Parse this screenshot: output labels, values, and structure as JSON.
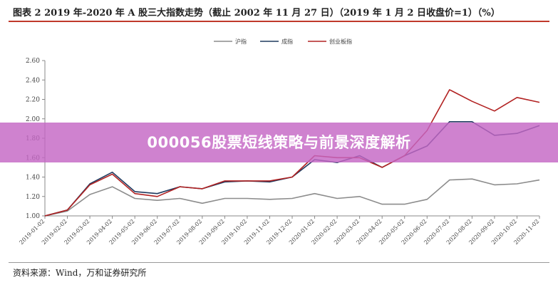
{
  "header": {
    "title": "图表 2   2019 年-2020 年 A 股三大指数走势（截止 2002 年 11 月 27 日）（2019 年 1 月 2 日收盘价=1）（%）"
  },
  "banner": {
    "text": "000056股票短线策略与前景深度解析"
  },
  "footer": {
    "source": "资料来源：Wind，万和证券研究所"
  },
  "colors": {
    "shz": "#8c8c8c",
    "szc": "#1f3a5f",
    "cyb": "#b22222",
    "banner": "#c466c4",
    "rule": "#c0392b"
  },
  "chart_data": {
    "type": "line",
    "title": "",
    "xlabel": "",
    "ylabel": "",
    "ylim": [
      1.0,
      2.6
    ],
    "yticks": [
      "1.00",
      "1.20",
      "1.40",
      "1.60",
      "1.80",
      "2.00",
      "2.20",
      "2.40",
      "2.60"
    ],
    "x": [
      "2019-01-02",
      "2019-02-02",
      "2019-03-02",
      "2019-04-02",
      "2019-05-02",
      "2019-06-02",
      "2019-07-02",
      "2019-08-02",
      "2019-09-02",
      "2019-10-02",
      "2019-11-02",
      "2019-12-02",
      "2020-01-02",
      "2020-02-02",
      "2020-03-02",
      "2020-04-02",
      "2020-05-02",
      "2020-06-02",
      "2020-07-02",
      "2020-08-02",
      "2020-09-02",
      "2020-10-02",
      "2020-11-02"
    ],
    "legend_position": "top-center",
    "grid": false,
    "series": [
      {
        "name": "沪指",
        "color_key": "shz",
        "values": [
          1.0,
          1.05,
          1.22,
          1.3,
          1.18,
          1.16,
          1.18,
          1.13,
          1.18,
          1.18,
          1.17,
          1.18,
          1.23,
          1.18,
          1.2,
          1.12,
          1.12,
          1.17,
          1.37,
          1.38,
          1.32,
          1.33,
          1.37
        ]
      },
      {
        "name": "成指",
        "color_key": "szc",
        "values": [
          1.0,
          1.06,
          1.33,
          1.45,
          1.25,
          1.23,
          1.3,
          1.28,
          1.35,
          1.36,
          1.35,
          1.4,
          1.58,
          1.55,
          1.62,
          1.5,
          1.62,
          1.72,
          1.97,
          1.97,
          1.83,
          1.85,
          1.93
        ]
      },
      {
        "name": "创业板指",
        "color_key": "cyb",
        "values": [
          1.0,
          1.06,
          1.32,
          1.43,
          1.23,
          1.2,
          1.3,
          1.28,
          1.36,
          1.36,
          1.36,
          1.4,
          1.62,
          1.6,
          1.6,
          1.5,
          1.62,
          1.88,
          2.3,
          2.18,
          2.08,
          2.22,
          2.17
        ]
      }
    ]
  }
}
